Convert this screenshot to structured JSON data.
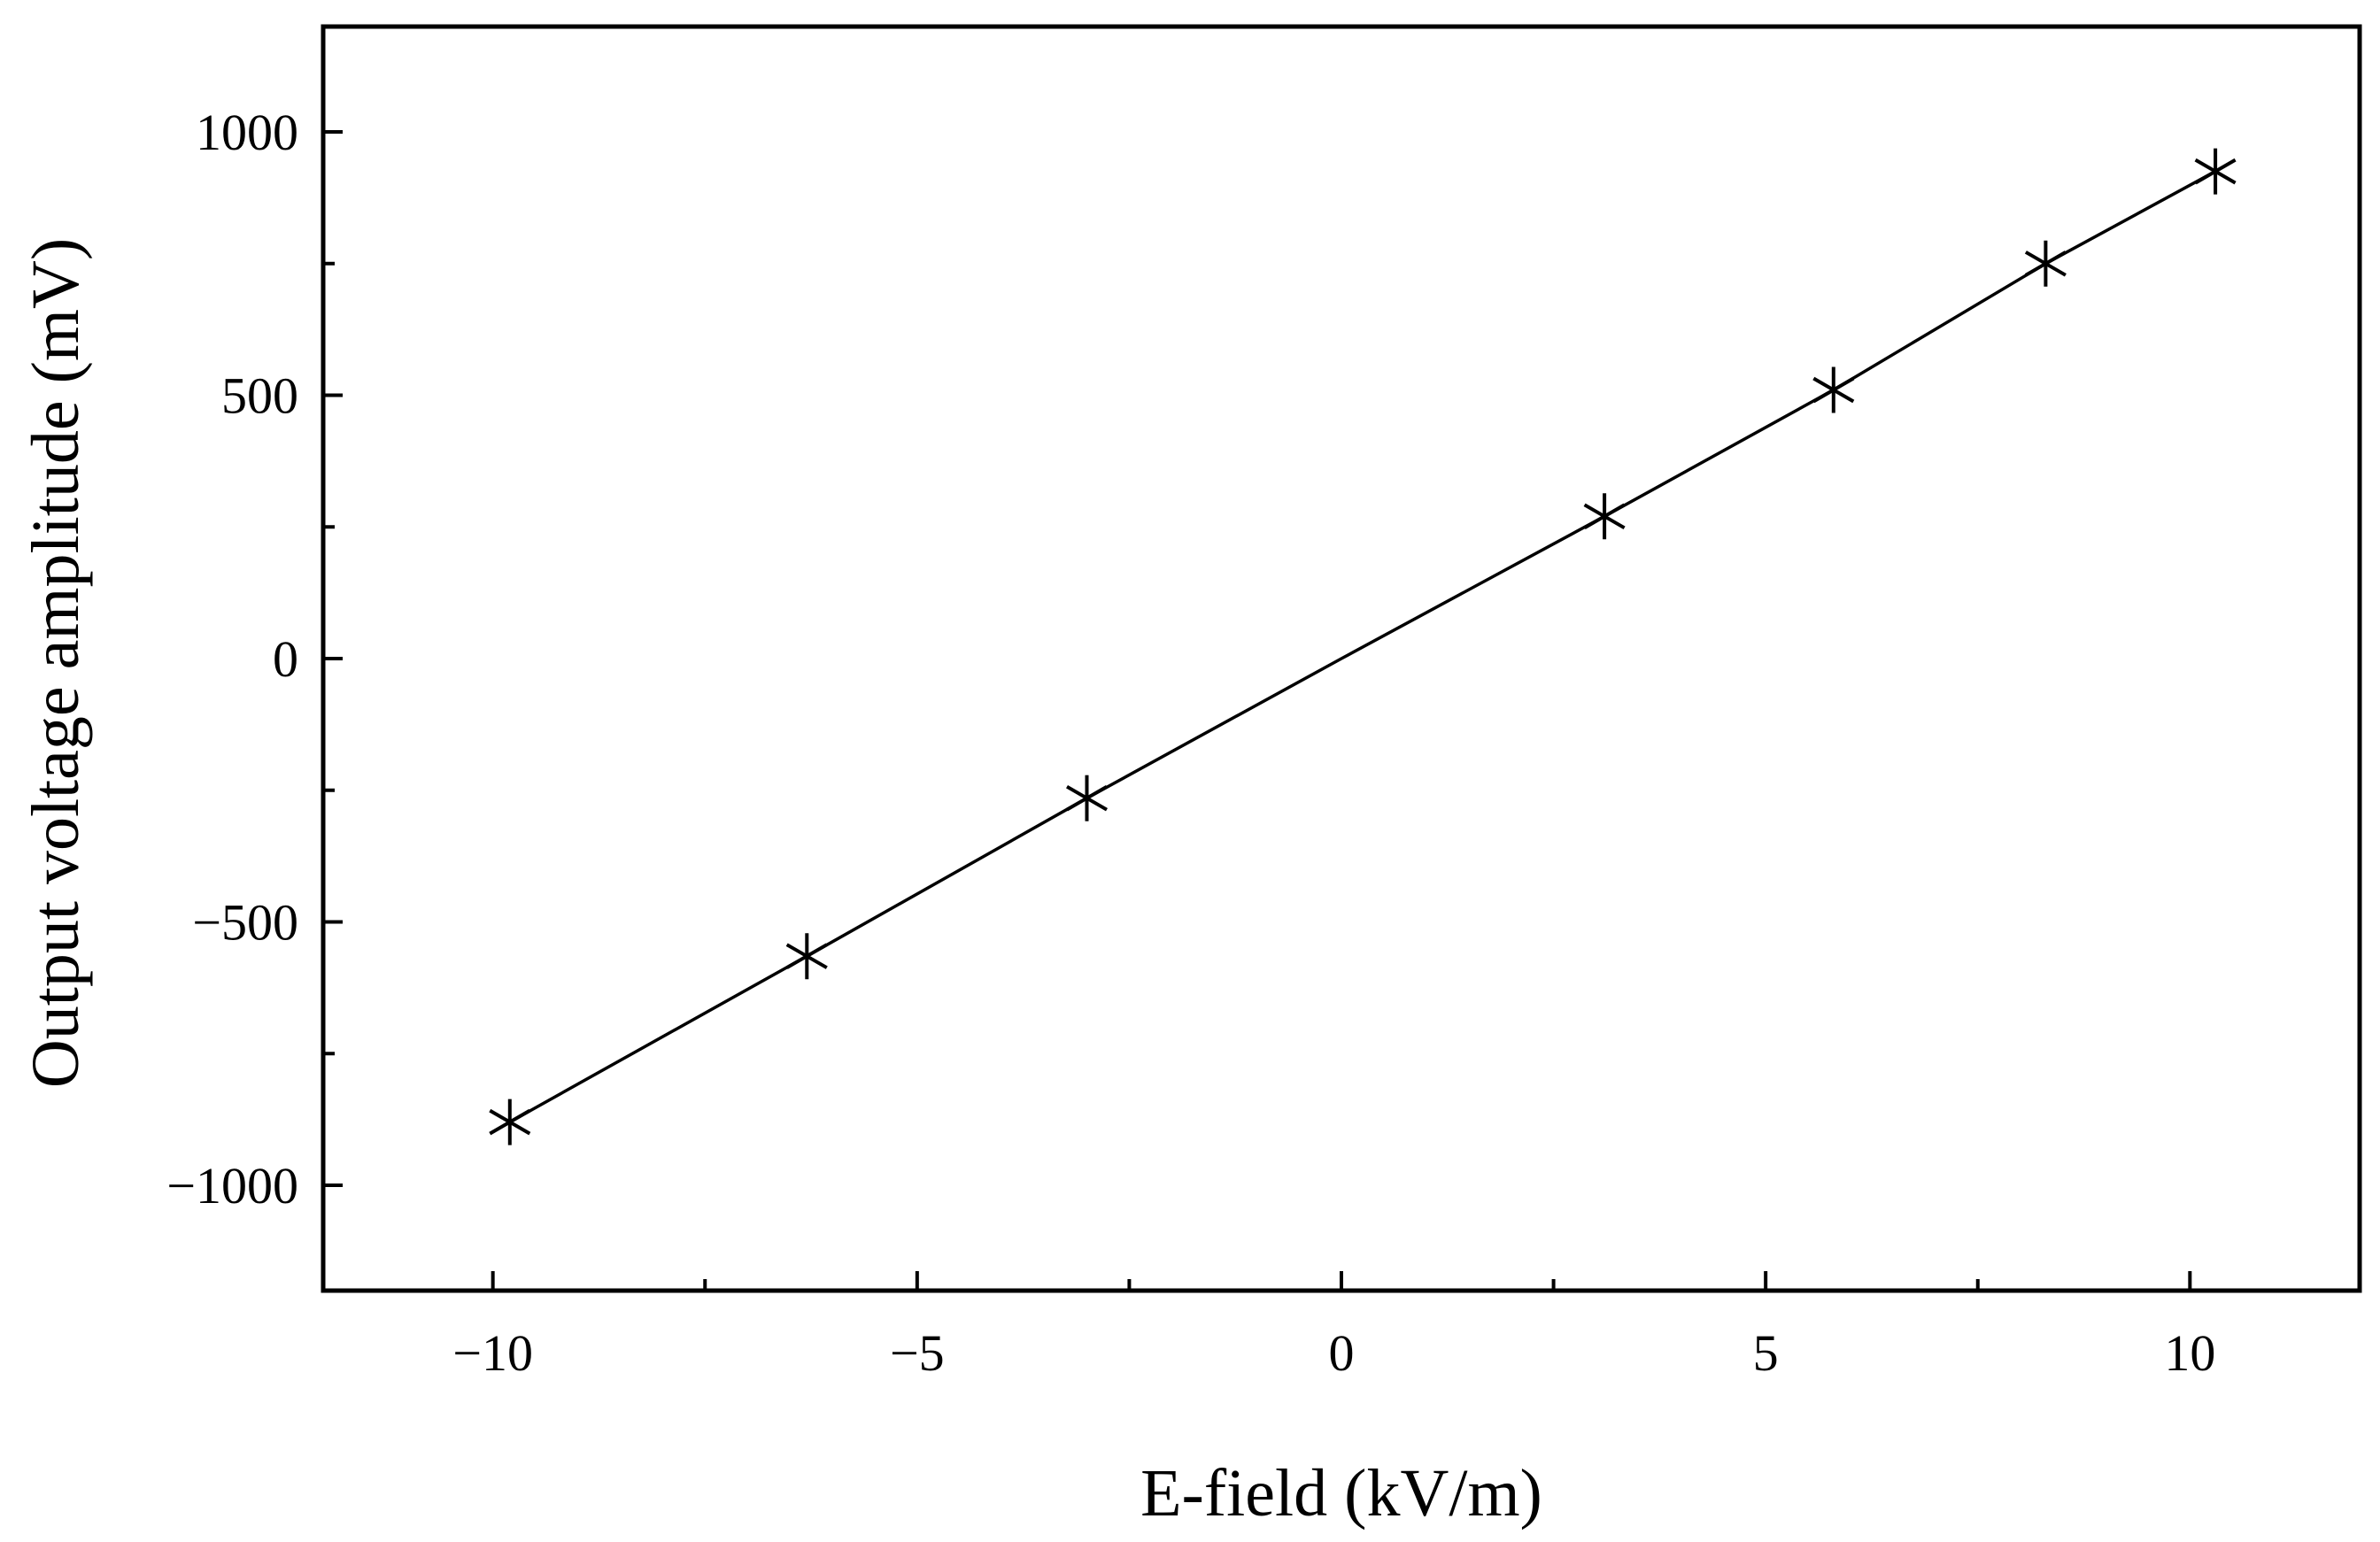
{
  "chart_data": {
    "type": "line",
    "title": "",
    "xlabel": "E-field (kV/m)",
    "ylabel": "Output voltage amplitude (mV)",
    "xlim": [
      -12,
      12
    ],
    "ylim": [
      -1200,
      1200
    ],
    "x_ticks": [
      -10,
      -5,
      0,
      5,
      10
    ],
    "x_tick_labels": [
      "−10",
      "−5",
      "0",
      "5",
      "10"
    ],
    "x_minor_ticks": [
      -7.5,
      -2.5,
      2.5,
      7.5
    ],
    "y_ticks": [
      -1000,
      -500,
      0,
      500,
      1000
    ],
    "y_tick_labels": [
      "−1000",
      "−500",
      "0",
      "500",
      "1000"
    ],
    "y_minor_ticks": [
      -750,
      -250,
      250,
      750
    ],
    "grid": false,
    "legend": "none",
    "marker": "asterisk",
    "series": [
      {
        "color": "#000000",
        "x": [
          -9.8,
          -6.3,
          -3.0,
          3.1,
          5.8,
          8.3,
          10.3
        ],
        "y": [
          -880,
          -565,
          -265,
          270,
          510,
          750,
          925
        ]
      }
    ],
    "line_through_origin": true
  }
}
